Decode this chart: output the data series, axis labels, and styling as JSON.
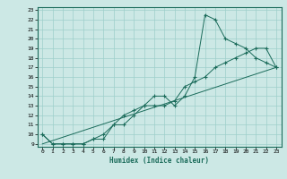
{
  "xlabel": "Humidex (Indice chaleur)",
  "xlim": [
    -0.5,
    23.5
  ],
  "ylim": [
    8.7,
    23.3
  ],
  "xticks": [
    0,
    1,
    2,
    3,
    4,
    5,
    6,
    7,
    8,
    9,
    10,
    11,
    12,
    13,
    14,
    15,
    16,
    17,
    18,
    19,
    20,
    21,
    22,
    23
  ],
  "yticks": [
    9,
    10,
    11,
    12,
    13,
    14,
    15,
    16,
    17,
    18,
    19,
    20,
    21,
    22,
    23
  ],
  "line_color": "#1a6b5a",
  "bg_color": "#cce8e5",
  "grid_color": "#9ecfca",
  "line1_x": [
    0,
    1,
    2,
    3,
    4,
    5,
    6,
    7,
    8,
    9,
    10,
    11,
    12,
    13,
    14,
    15,
    16,
    17,
    18,
    19,
    20,
    21,
    22,
    23
  ],
  "line1_y": [
    10,
    9,
    9,
    9,
    9,
    9.5,
    9.5,
    11,
    12,
    12.5,
    13,
    14,
    14,
    13,
    14,
    16,
    22.5,
    22,
    20,
    19.5,
    19,
    18,
    17.5,
    17
  ],
  "line2_x": [
    0,
    1,
    2,
    3,
    4,
    5,
    6,
    7,
    8,
    9,
    10,
    11,
    12,
    13,
    14,
    15,
    16,
    17,
    18,
    19,
    20,
    21,
    22,
    23
  ],
  "line2_y": [
    10,
    9,
    9,
    9,
    9,
    9.5,
    10,
    11,
    11,
    12,
    13,
    13,
    13,
    13.5,
    15,
    15.5,
    16,
    17,
    17.5,
    18,
    18.5,
    19,
    19,
    17
  ],
  "line3_x": [
    0,
    23
  ],
  "line3_y": [
    9,
    17
  ]
}
